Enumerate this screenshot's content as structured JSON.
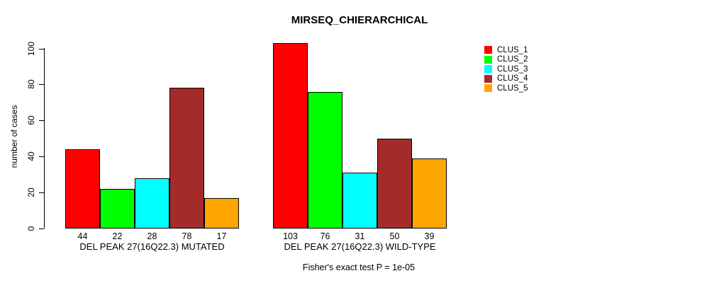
{
  "chart_data": {
    "type": "bar",
    "title": "MIRSEQ_CHIERARCHICAL",
    "xlabel": "",
    "ylabel": "number of cases",
    "ylim": [
      0,
      100
    ],
    "yticks": [
      0,
      20,
      40,
      60,
      80,
      100
    ],
    "grid": false,
    "legend_position": "right",
    "categories": [
      "DEL PEAK 27(16Q22.3) MUTATED",
      "DEL PEAK 27(16Q22.3) WILD-TYPE"
    ],
    "series": [
      {
        "name": "CLUS_1",
        "color": "#FF0000",
        "values": [
          44,
          103
        ]
      },
      {
        "name": "CLUS_2",
        "color": "#00FF00",
        "values": [
          22,
          76
        ]
      },
      {
        "name": "CLUS_3",
        "color": "#00FFFF",
        "values": [
          28,
          31
        ]
      },
      {
        "name": "CLUS_4",
        "color": "#A52A2A",
        "values": [
          78,
          50
        ]
      },
      {
        "name": "CLUS_5",
        "color": "#FFA500",
        "values": [
          17,
          39
        ]
      }
    ],
    "bar_value_labels": [
      [
        44,
        22,
        28,
        78,
        17
      ],
      [
        103,
        76,
        31,
        50,
        39
      ]
    ],
    "footnote": "Fisher's exact test P = 1e-05"
  }
}
